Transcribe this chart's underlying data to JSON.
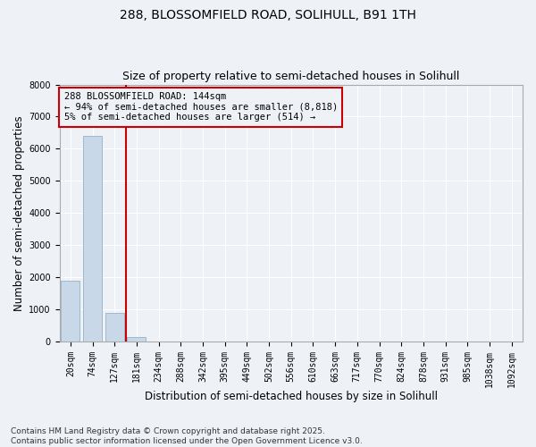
{
  "title_line1": "288, BLOSSOMFIELD ROAD, SOLIHULL, B91 1TH",
  "title_line2": "Size of property relative to semi-detached houses in Solihull",
  "xlabel": "Distribution of semi-detached houses by size in Solihull",
  "ylabel": "Number of semi-detached properties",
  "categories": [
    "20sqm",
    "74sqm",
    "127sqm",
    "181sqm",
    "234sqm",
    "288sqm",
    "342sqm",
    "395sqm",
    "449sqm",
    "502sqm",
    "556sqm",
    "610sqm",
    "663sqm",
    "717sqm",
    "770sqm",
    "824sqm",
    "878sqm",
    "931sqm",
    "985sqm",
    "1038sqm",
    "1092sqm"
  ],
  "values": [
    1900,
    6400,
    900,
    150,
    0,
    0,
    0,
    0,
    0,
    0,
    0,
    0,
    0,
    0,
    0,
    0,
    0,
    0,
    0,
    0,
    0
  ],
  "bar_color": "#c8d8e8",
  "bar_edgecolor": "#a0b8cc",
  "vline_x_index": 2,
  "vline_color": "#cc0000",
  "annotation_text": "288 BLOSSOMFIELD ROAD: 144sqm\n← 94% of semi-detached houses are smaller (8,818)\n5% of semi-detached houses are larger (514) →",
  "annotation_box_color": "#cc0000",
  "ylim": [
    0,
    8000
  ],
  "yticks": [
    0,
    1000,
    2000,
    3000,
    4000,
    5000,
    6000,
    7000,
    8000
  ],
  "footnote": "Contains HM Land Registry data © Crown copyright and database right 2025.\nContains public sector information licensed under the Open Government Licence v3.0.",
  "background_color": "#eef2f7",
  "grid_color": "#ffffff",
  "title_fontsize": 10,
  "subtitle_fontsize": 9,
  "axis_label_fontsize": 8.5,
  "tick_fontsize": 7,
  "annotation_fontsize": 7.5,
  "footnote_fontsize": 6.5
}
